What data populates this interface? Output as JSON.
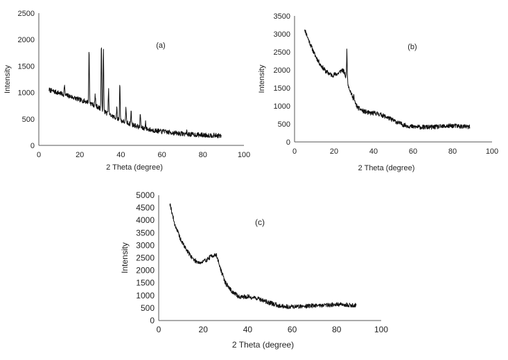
{
  "chart_data": [
    {
      "type": "line",
      "panel_label": "(a)",
      "xlabel": "2 Theta  (degree)",
      "ylabel": "Intensity",
      "xlim": [
        0,
        100
      ],
      "ylim": [
        0,
        2500
      ],
      "xticks": [
        "0",
        "20",
        "40",
        "60",
        "80",
        "100"
      ],
      "yticks": [
        "0",
        "500",
        "1000",
        "1500",
        "2000",
        "2500"
      ],
      "grid": false,
      "series": [
        {
          "x": [
            5,
            8,
            10,
            12,
            15,
            18,
            20,
            22,
            24,
            25,
            26,
            28,
            30,
            32,
            34,
            36,
            38,
            40,
            42,
            45,
            48,
            50,
            55,
            60,
            65,
            70,
            75,
            80,
            85,
            89
          ],
          "y": [
            1050,
            1010,
            990,
            960,
            930,
            890,
            860,
            840,
            820,
            800,
            780,
            740,
            700,
            640,
            590,
            550,
            510,
            470,
            440,
            400,
            360,
            330,
            290,
            260,
            240,
            220,
            205,
            195,
            190,
            180
          ],
          "peaks": [
            {
              "x": 12.5,
              "y": 1150
            },
            {
              "x": 24.5,
              "y": 1800
            },
            {
              "x": 27.5,
              "y": 950
            },
            {
              "x": 30.5,
              "y": 1900
            },
            {
              "x": 31.5,
              "y": 1800
            },
            {
              "x": 34,
              "y": 1050
            },
            {
              "x": 38,
              "y": 700
            },
            {
              "x": 39.5,
              "y": 1200
            },
            {
              "x": 42.5,
              "y": 700
            },
            {
              "x": 45,
              "y": 650
            },
            {
              "x": 49.5,
              "y": 600
            },
            {
              "x": 52,
              "y": 450
            },
            {
              "x": 61,
              "y": 320
            },
            {
              "x": 72,
              "y": 270
            }
          ]
        }
      ]
    },
    {
      "type": "line",
      "panel_label": "(b)",
      "xlabel": "2 Theta (degree)",
      "ylabel": "Intensity",
      "xlim": [
        0,
        100
      ],
      "ylim": [
        0,
        3500
      ],
      "xticks": [
        "0",
        "20",
        "40",
        "60",
        "80",
        "100"
      ],
      "yticks": [
        "0",
        "500",
        "1000",
        "1500",
        "2000",
        "2500",
        "3000",
        "3500"
      ],
      "grid": false,
      "series": [
        {
          "x": [
            5,
            7,
            10,
            13,
            16,
            19,
            22,
            24,
            25,
            26,
            28,
            30,
            32,
            35,
            38,
            41,
            44,
            47,
            50,
            53,
            56,
            60,
            65,
            70,
            75,
            80,
            85,
            89
          ],
          "y": [
            3150,
            2850,
            2450,
            2150,
            1950,
            1850,
            1900,
            2000,
            1950,
            1800,
            1450,
            1150,
            950,
            850,
            800,
            800,
            750,
            680,
            600,
            520,
            460,
            420,
            410,
            410,
            430,
            450,
            430,
            410
          ],
          "peaks": [
            {
              "x": 26.5,
              "y": 2550
            },
            {
              "x": 30,
              "y": 1300
            }
          ]
        }
      ]
    },
    {
      "type": "line",
      "panel_label": "(c)",
      "xlabel": "2 Theta (degree)",
      "ylabel": "Intensity",
      "xlim": [
        0,
        100
      ],
      "ylim": [
        0,
        5000
      ],
      "xticks": [
        "0",
        "20",
        "40",
        "60",
        "80",
        "100"
      ],
      "yticks": [
        "0",
        "500",
        "1000",
        "1500",
        "2000",
        "2500",
        "3000",
        "3500",
        "4000",
        "4500",
        "5000"
      ],
      "grid": false,
      "series": [
        {
          "x": [
            5,
            7,
            10,
            13,
            16,
            19,
            22,
            24,
            26,
            28,
            30,
            33,
            36,
            40,
            44,
            47,
            50,
            54,
            58,
            62,
            66,
            70,
            75,
            80,
            85,
            89
          ],
          "y": [
            4700,
            3900,
            3200,
            2750,
            2400,
            2300,
            2450,
            2600,
            2600,
            2000,
            1500,
            1150,
            950,
            950,
            900,
            800,
            700,
            600,
            550,
            560,
            580,
            600,
            620,
            640,
            620,
            600
          ],
          "peaks": []
        }
      ]
    }
  ]
}
